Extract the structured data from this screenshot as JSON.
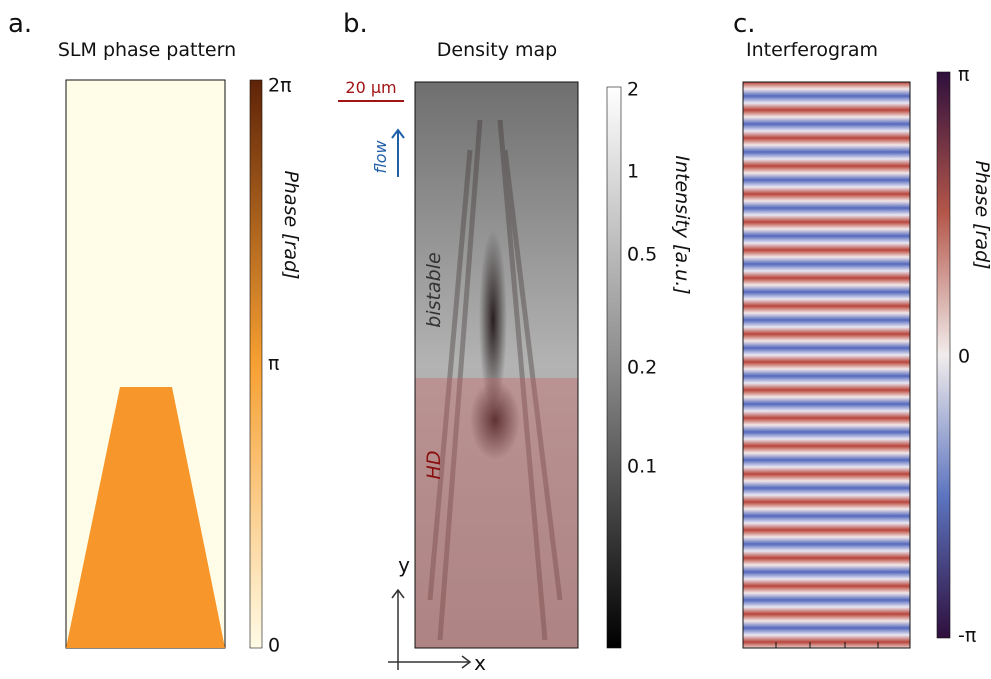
{
  "panels": [
    {
      "label": "a.",
      "title": "SLM phase pattern",
      "colorbar": {
        "label": "Phase [rad]",
        "ticks": [
          "2π",
          "π",
          "0"
        ]
      }
    },
    {
      "label": "b.",
      "title": "Density map",
      "scale_bar": "20 µm",
      "annotations": [
        "flow",
        "bistable",
        "HD"
      ],
      "axes": [
        "y",
        "x"
      ],
      "colorbar": {
        "label": "Intensity [a.u.]",
        "ticks": [
          "2",
          "1",
          "0.5",
          "0.2",
          "0.1"
        ]
      }
    },
    {
      "label": "c.",
      "title": "Interferogram",
      "colorbar": {
        "label": "Phase [rad]",
        "ticks": [
          "π",
          "0",
          "-π"
        ]
      }
    }
  ]
}
